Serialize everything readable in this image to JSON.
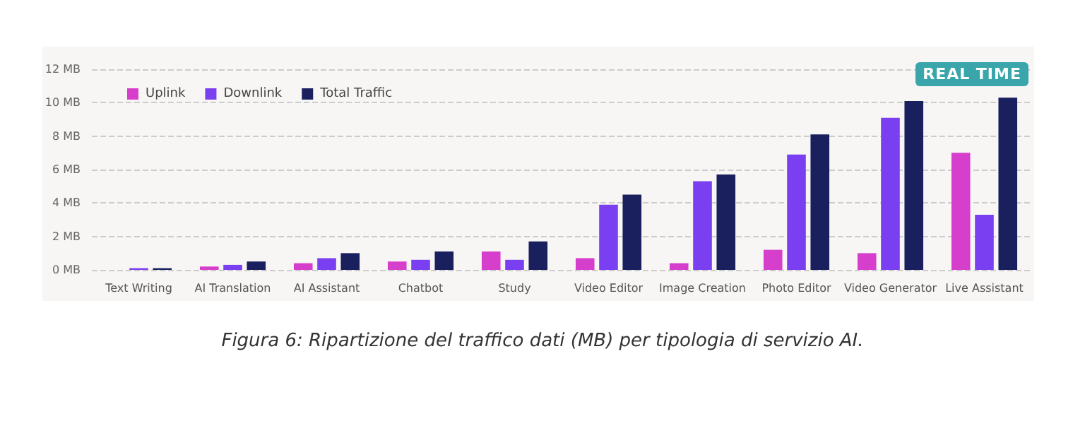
{
  "chart_data": {
    "type": "bar",
    "categories": [
      "Text Writing",
      "AI Translation",
      "AI Assistant",
      "Chatbot",
      "Study",
      "Video Editor",
      "Image Creation",
      "Photo Editor",
      "Video Generator",
      "Live Assistant"
    ],
    "series": [
      {
        "name": "Uplink",
        "color": "#d63fcc",
        "values": [
          null,
          0.2,
          0.4,
          0.5,
          1.1,
          0.7,
          0.4,
          1.2,
          1.0,
          7.0
        ]
      },
      {
        "name": "Downlink",
        "color": "#7a3ff0",
        "values": [
          0.1,
          0.3,
          0.7,
          0.6,
          0.6,
          3.9,
          5.3,
          6.9,
          9.1,
          3.3
        ]
      },
      {
        "name": "Total Traffic",
        "color": "#1a1f5e",
        "values": [
          0.1,
          0.5,
          1.0,
          1.1,
          1.7,
          4.5,
          5.7,
          8.1,
          10.1,
          10.3
        ]
      }
    ],
    "ylim": [
      0,
      12
    ],
    "yticks": [
      {
        "value": 0,
        "label": "0 MB"
      },
      {
        "value": 2,
        "label": "2 MB"
      },
      {
        "value": 4,
        "label": "4 MB"
      },
      {
        "value": 6,
        "label": "6 MB"
      },
      {
        "value": 8,
        "label": "8 MB"
      },
      {
        "value": 10,
        "label": "10 MB"
      },
      {
        "value": 12,
        "label": "12 MB"
      }
    ],
    "grid": "y",
    "line_style": "dashed",
    "legend": "top left",
    "annotations": [
      "REAL TIME",
      "Figura 6: Ripartizione del traffico dati (MB) per tipologia di servizio AI."
    ]
  }
}
